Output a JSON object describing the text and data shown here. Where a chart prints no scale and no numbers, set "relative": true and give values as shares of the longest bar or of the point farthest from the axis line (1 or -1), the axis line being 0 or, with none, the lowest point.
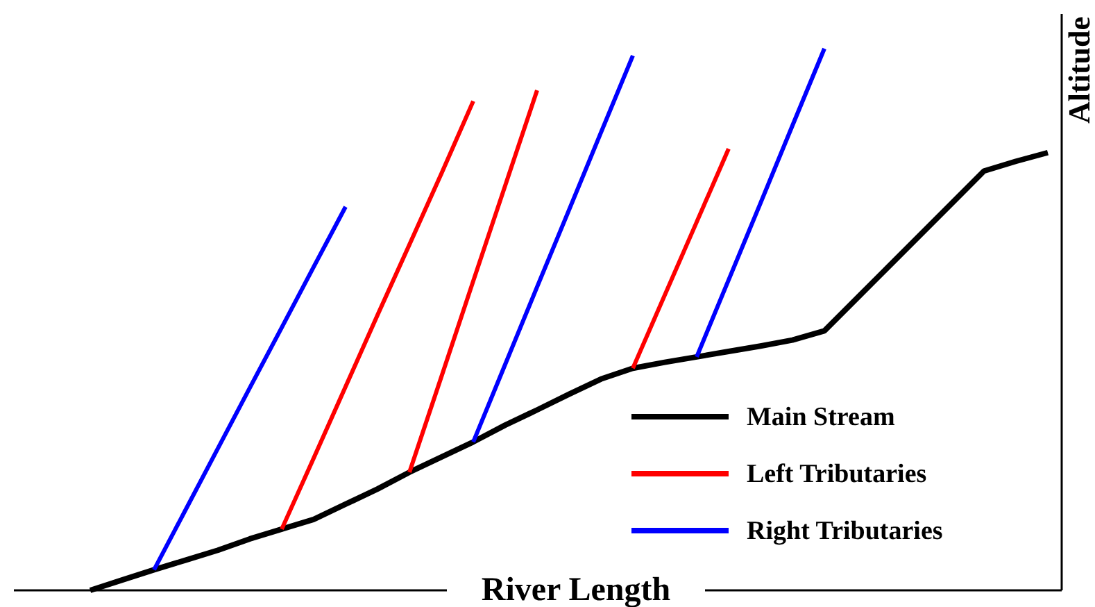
{
  "chart_data": {
    "type": "line",
    "relative": true,
    "xlabel": "River Length",
    "ylabel": "Altitude",
    "legend": "bottom right",
    "marker": "none",
    "line_style": "solid",
    "categories": [
      null,
      null,
      null,
      null,
      null,
      null,
      null,
      null,
      null,
      null,
      null,
      null,
      null,
      null,
      null,
      null,
      null,
      null,
      null,
      null,
      null,
      null,
      null,
      null,
      null,
      null,
      null,
      null,
      null,
      null,
      null
    ],
    "series": [
      {
        "name": "Main Stream",
        "color": "#000000",
        "values": [
          0,
          0.019,
          0.038,
          0.056,
          0.074,
          0.095,
          0.113,
          0.131,
          0.159,
          0.187,
          0.218,
          0.246,
          0.274,
          0.305,
          0.333,
          0.362,
          0.39,
          0.41,
          0.421,
          0.431,
          0.441,
          0.451,
          0.462,
          0.479,
          0.538,
          0.597,
          0.656,
          0.715,
          0.774,
          0.792,
          0.808
        ]
      },
      {
        "name": "Left Tributaries",
        "color": "#ff0000",
        "values": [
          null,
          null,
          null,
          null,
          null,
          null,
          0.113,
          0.244,
          0.376,
          0.508,
          0.638,
          0.769,
          0.903,
          null,
          null,
          null,
          null,
          null,
          null,
          null,
          null,
          null,
          null,
          null,
          null,
          null,
          null,
          null,
          null,
          null,
          null
        ]
      },
      {
        "name": "Right Tributaries",
        "color": "#0000ff",
        "values": [
          null,
          null,
          0.038,
          0.15,
          0.262,
          0.374,
          0.485,
          0.597,
          0.708,
          null,
          null,
          null,
          null,
          null,
          null,
          null,
          null,
          null,
          null,
          null,
          null,
          null,
          null,
          null,
          null,
          null,
          null,
          null,
          null,
          null,
          null
        ]
      },
      {
        "color": "#ff0000",
        "values": [
          null,
          null,
          null,
          null,
          null,
          null,
          null,
          null,
          null,
          null,
          0.218,
          0.394,
          0.571,
          0.747,
          0.923,
          null,
          null,
          null,
          null,
          null,
          null,
          null,
          null,
          null,
          null,
          null,
          null,
          null,
          null,
          null,
          null
        ]
      },
      {
        "color": "#ff0000",
        "values": [
          null,
          null,
          null,
          null,
          null,
          null,
          null,
          null,
          null,
          null,
          null,
          null,
          null,
          null,
          null,
          null,
          null,
          0.41,
          0.545,
          0.68,
          0.815,
          null,
          null,
          null,
          null,
          null,
          null,
          null,
          null,
          null,
          null
        ]
      },
      {
        "color": "#0000ff",
        "values": [
          null,
          null,
          null,
          null,
          null,
          null,
          null,
          null,
          null,
          null,
          null,
          null,
          0.274,
          0.417,
          0.56,
          0.702,
          0.845,
          0.987,
          null,
          null,
          null,
          null,
          null,
          null,
          null,
          null,
          null,
          null,
          null,
          null,
          null
        ]
      },
      {
        "color": "#0000ff",
        "values": [
          null,
          null,
          null,
          null,
          null,
          null,
          null,
          null,
          null,
          null,
          null,
          null,
          null,
          null,
          null,
          null,
          null,
          null,
          null,
          0.431,
          0.573,
          0.715,
          0.858,
          1,
          null,
          null,
          null,
          null,
          null,
          null,
          null
        ]
      }
    ]
  }
}
